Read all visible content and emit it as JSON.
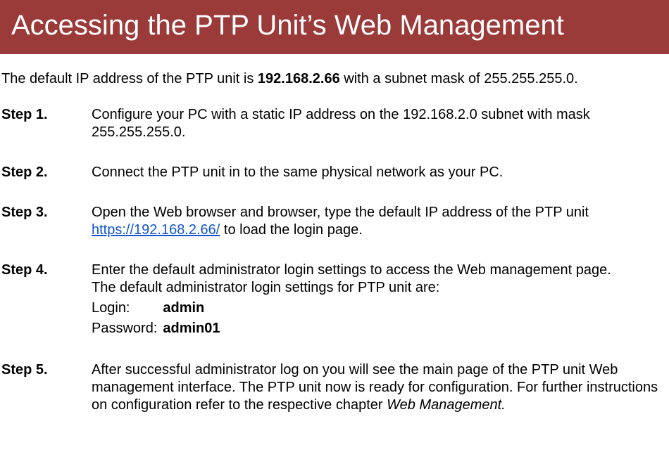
{
  "title": "Accessing the PTP Unit’s Web Management",
  "title_bg": "#9a3b3a",
  "title_fg": "#ffffff",
  "intro_prefix": "The default IP address of the PTP unit is ",
  "intro_ip": "192.168.2.66",
  "intro_suffix": " with a subnet mask of 255.255.255.0.",
  "link_color": "#1155cc",
  "steps": [
    {
      "label": "Step 1.",
      "text": "Configure your PC with a static IP address on the 192.168.2.0 subnet with mask 255.255.255.0."
    },
    {
      "label": "Step 2.",
      "text": "Connect the PTP unit in to the same physical network as your PC."
    },
    {
      "label": "Step 3.",
      "pre_link": "Open the Web browser and browser, type the default IP address of the PTP unit ",
      "link_text": "https://192.168.2.66/",
      "post_link": " to load the login page."
    },
    {
      "label": "Step 4.",
      "line1": "Enter the default administrator login settings to access the Web management page.",
      "line2": "The default administrator login settings for PTP unit are:",
      "login_label": "Login:",
      "login_value": "admin",
      "password_label": "Password:",
      "password_value": "admin01"
    },
    {
      "label": "Step 5.",
      "pre_italic": "After successful administrator log on you will see the main page of the PTP unit Web management interface. The PTP unit now is ready for configuration. For further instructions on configuration refer to the respective chapter ",
      "italic_text": "Web Management."
    }
  ]
}
